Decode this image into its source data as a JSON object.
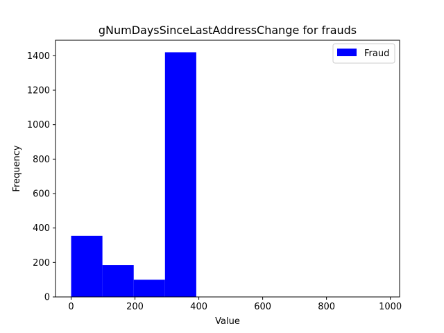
{
  "chart_data": {
    "type": "bar",
    "title": "gNumDaysSinceLastAddressChange for frauds",
    "xlabel": "Value",
    "ylabel": "Frequency",
    "xlim": [
      -49,
      1029
    ],
    "ylim": [
      0,
      1490
    ],
    "xticks": [
      0,
      200,
      400,
      600,
      800,
      1000
    ],
    "yticks": [
      0,
      200,
      400,
      600,
      800,
      1000,
      1200,
      1400
    ],
    "grid": false,
    "legend_position": "top-right",
    "series": [
      {
        "name": "Fraud",
        "color": "#0000ff",
        "bins": [
          {
            "x0": 0,
            "x1": 98,
            "value": 355
          },
          {
            "x0": 98,
            "x1": 196,
            "value": 185
          },
          {
            "x0": 196,
            "x1": 294,
            "value": 100
          },
          {
            "x0": 294,
            "x1": 392,
            "value": 1420
          }
        ]
      }
    ]
  }
}
